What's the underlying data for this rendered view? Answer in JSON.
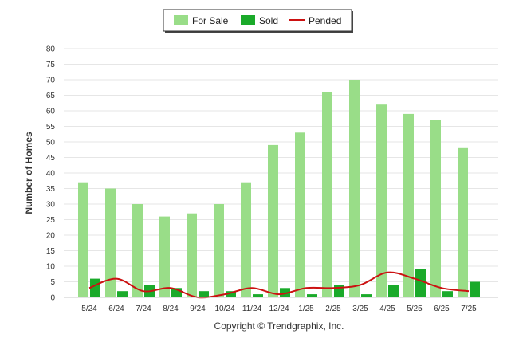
{
  "chart_data": {
    "type": "bar",
    "title": "",
    "xlabel": "",
    "ylabel": "Number of Homes",
    "ylim": [
      0,
      80
    ],
    "yticks": [
      0,
      5,
      10,
      15,
      20,
      25,
      30,
      35,
      40,
      45,
      50,
      55,
      60,
      65,
      70,
      75,
      80
    ],
    "grid": true,
    "legend_position": "top-center",
    "categories": [
      "5/24",
      "6/24",
      "7/24",
      "8/24",
      "9/24",
      "10/24",
      "11/24",
      "12/24",
      "1/25",
      "2/25",
      "3/25",
      "4/25",
      "5/25",
      "6/25",
      "7/25"
    ],
    "series": [
      {
        "name": "For Sale",
        "kind": "bar",
        "color": "#99dd88",
        "values": [
          37,
          35,
          30,
          26,
          27,
          30,
          37,
          49,
          53,
          66,
          70,
          62,
          59,
          57,
          48
        ]
      },
      {
        "name": "Sold",
        "kind": "bar",
        "color": "#1aaa2a",
        "values": [
          6,
          2,
          4,
          3,
          2,
          2,
          1,
          3,
          1,
          4,
          1,
          4,
          9,
          2,
          5
        ]
      },
      {
        "name": "Pended",
        "kind": "line",
        "color": "#cc1111",
        "values": [
          3,
          6,
          2,
          3,
          0,
          1,
          3,
          1,
          3,
          3,
          4,
          8,
          6,
          3,
          2
        ]
      }
    ],
    "credit": "Copyright © Trendgraphix, Inc."
  }
}
